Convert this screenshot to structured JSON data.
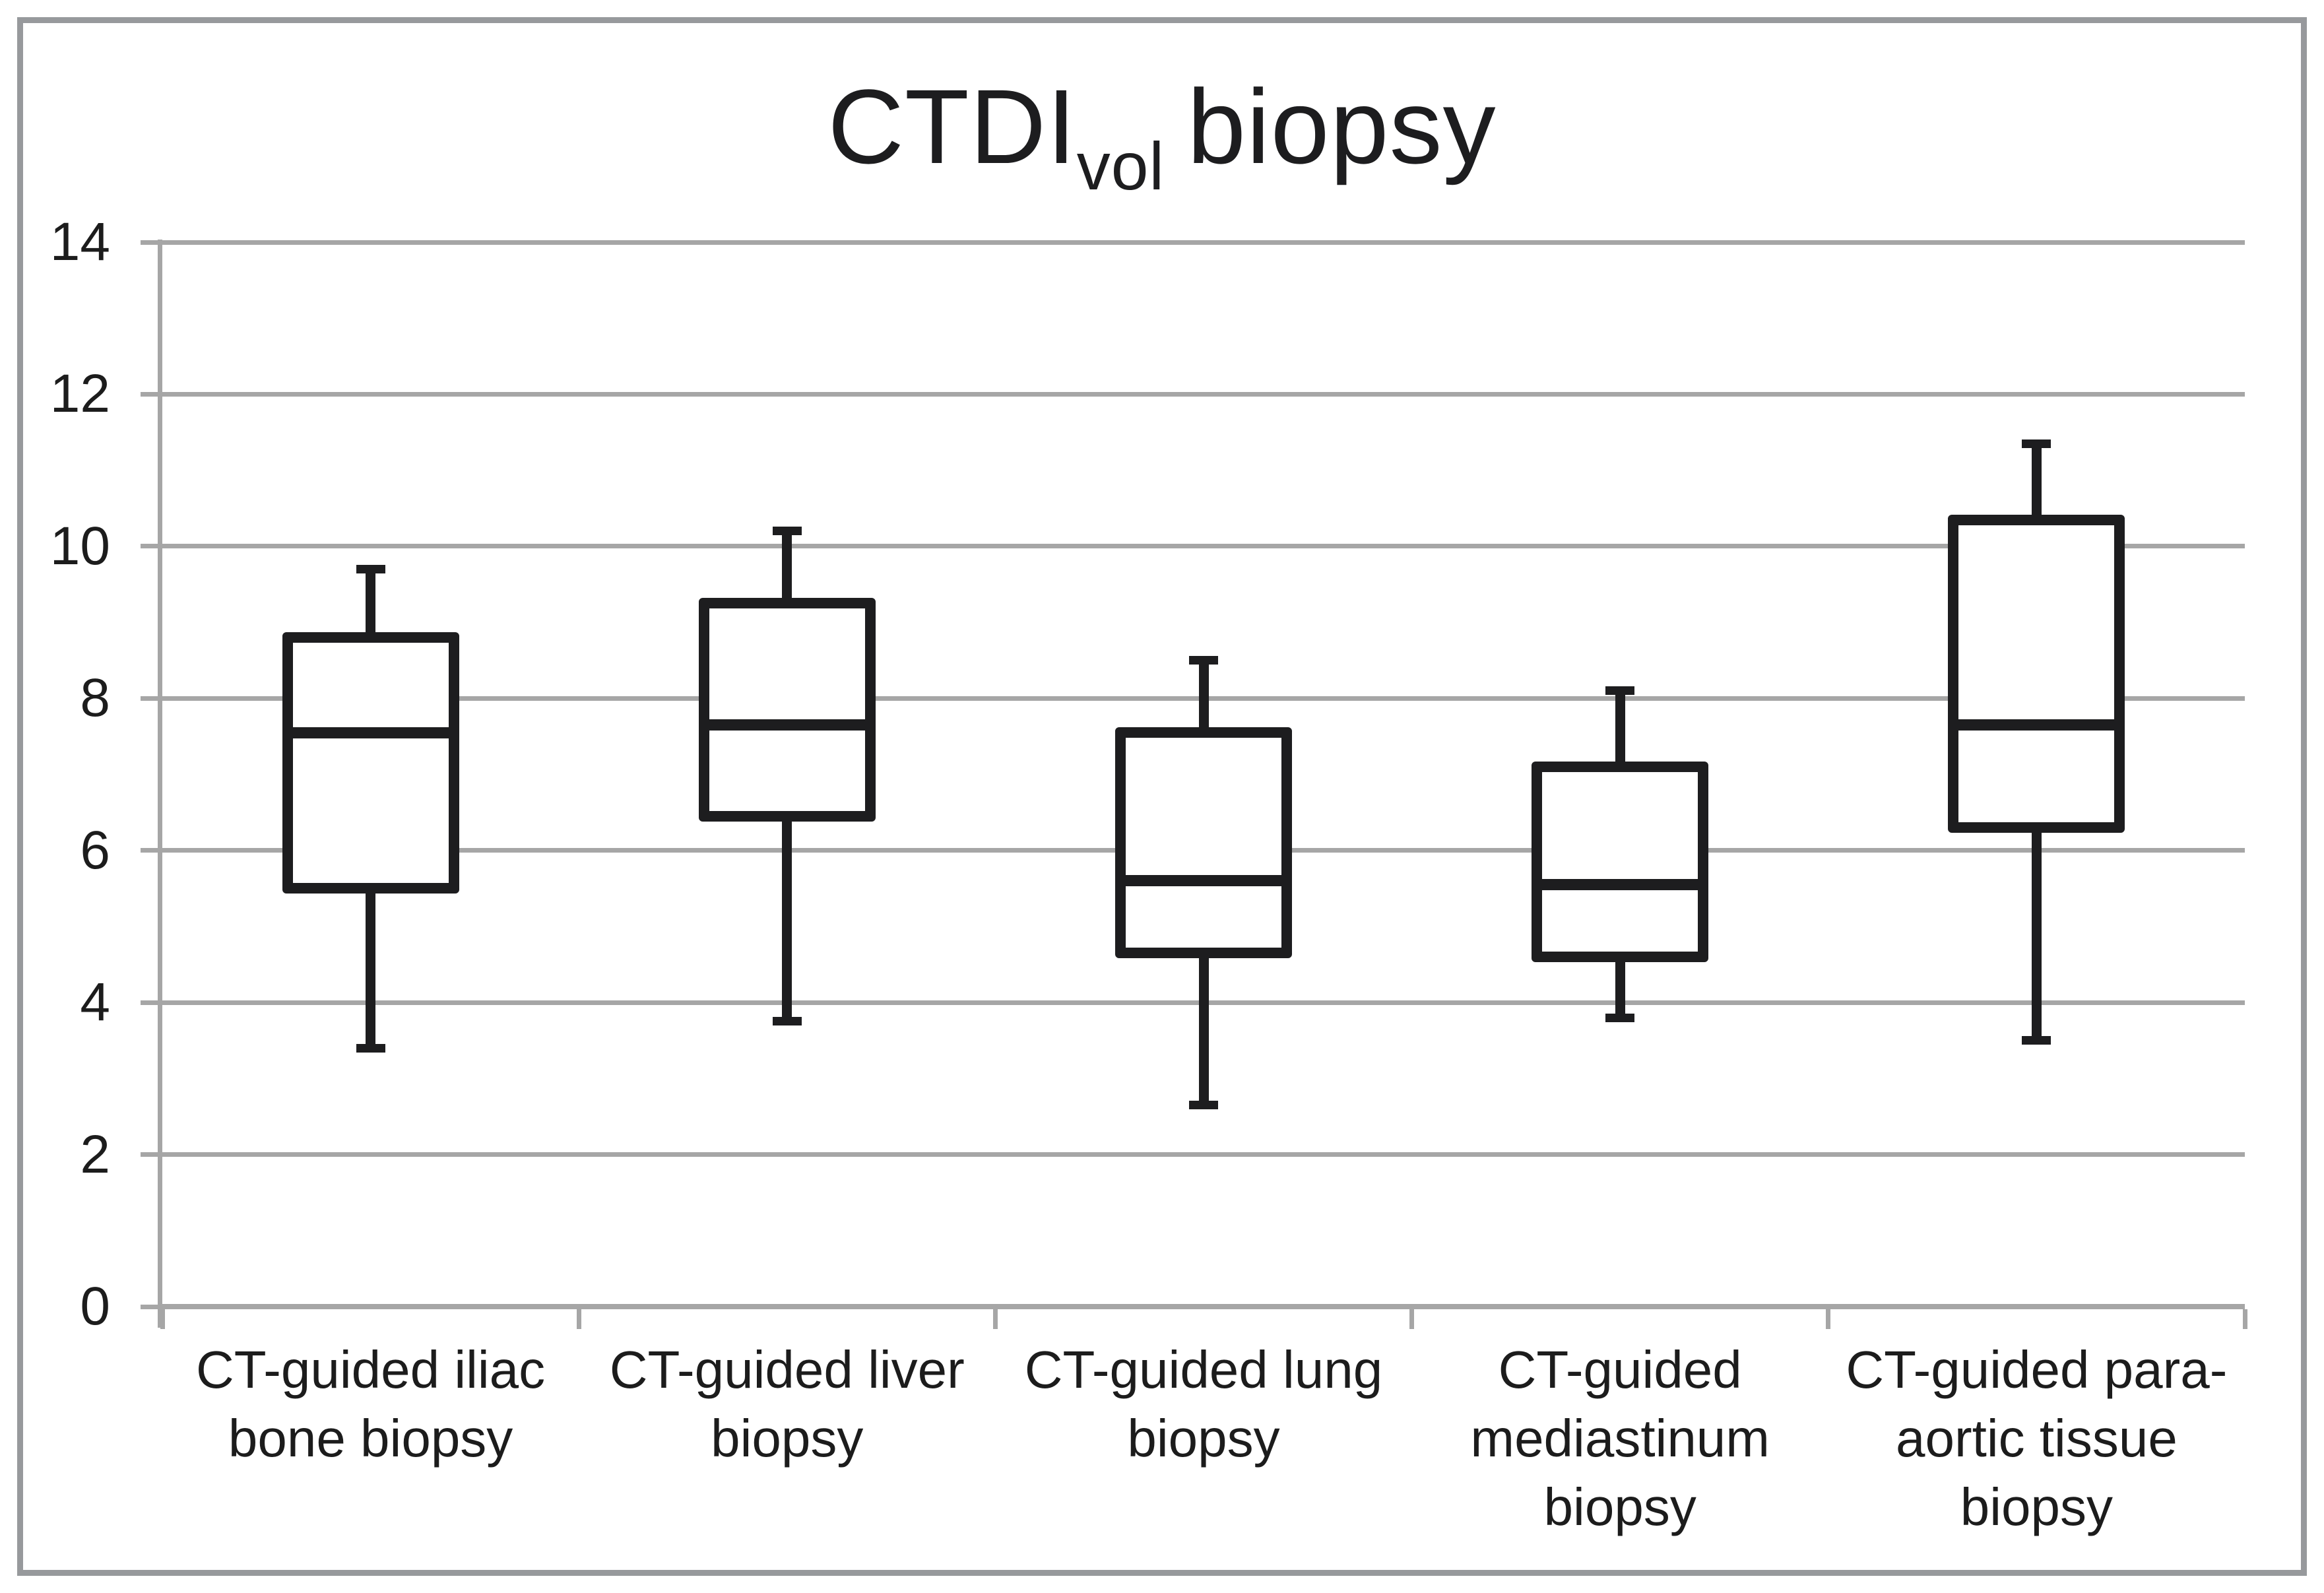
{
  "figure": {
    "title": {
      "main": "CTDI",
      "subscript": "vol",
      "suffix": "biopsy"
    }
  },
  "chart_data": {
    "type": "box",
    "title": "CTDI_vol biopsy",
    "categories": [
      "CT-guided iliac\nbone biopsy",
      "CT-guided liver\nbiopsy",
      "CT-guided lung\nbiopsy",
      "CT-guided\nmediastinum\nbiopsy",
      "CT-guided para-\naortic tissue\nbiopsy"
    ],
    "series": [
      {
        "name": "CT-guided iliac bone biopsy",
        "min": 3.4,
        "q1": 5.5,
        "median": 7.55,
        "q3": 8.8,
        "max": 9.7
      },
      {
        "name": "CT-guided liver biopsy",
        "min": 3.75,
        "q1": 6.45,
        "median": 7.65,
        "q3": 9.25,
        "max": 10.2
      },
      {
        "name": "CT-guided lung biopsy",
        "min": 2.65,
        "q1": 4.65,
        "median": 5.6,
        "q3": 7.55,
        "max": 8.5
      },
      {
        "name": "CT-guided mediastinum biopsy",
        "min": 3.8,
        "q1": 4.6,
        "median": 5.55,
        "q3": 7.1,
        "max": 8.1
      },
      {
        "name": "CT-guided para-aortic tissue biopsy",
        "min": 3.5,
        "q1": 6.3,
        "median": 7.65,
        "q3": 10.35,
        "max": 11.35
      }
    ],
    "xlabel": "",
    "ylabel": "",
    "ylim": [
      0,
      14
    ],
    "yticks": [
      0,
      2,
      4,
      6,
      8,
      10,
      12,
      14
    ],
    "grid": "horizontal",
    "legend": "none",
    "colors": {
      "box_stroke": "#1d1d1f",
      "gridline": "#a6a6a6",
      "axis": "#a6a6a6",
      "text": "#1c1c1c",
      "frame_border": "#97999c",
      "background": "#ffffff"
    }
  }
}
